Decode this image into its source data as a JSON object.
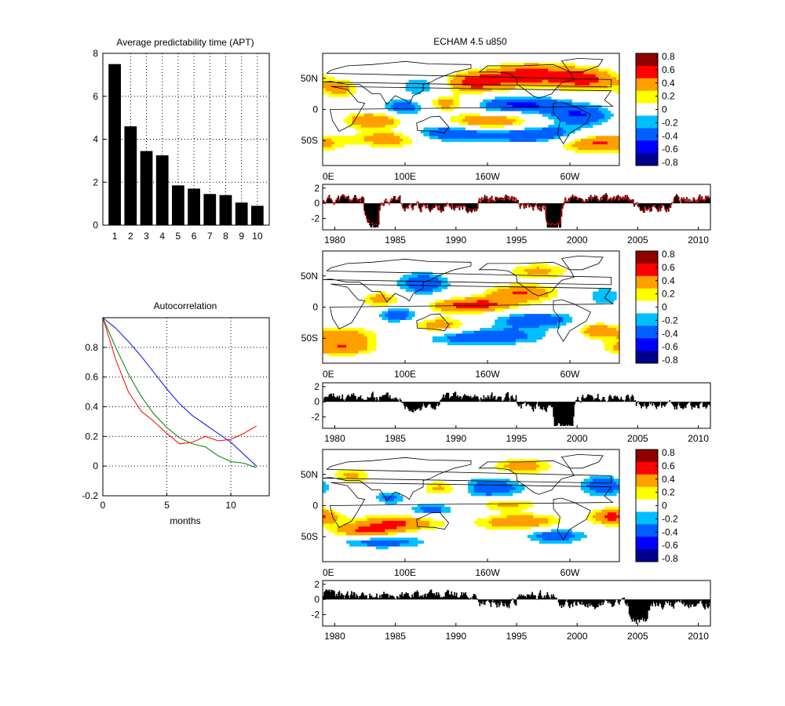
{
  "figure": {
    "title": "ECHAM 4.5 u850"
  },
  "chart_data": [
    {
      "id": "apt",
      "type": "bar",
      "title": "Average predictability time (APT)",
      "categories": [
        "1",
        "2",
        "3",
        "4",
        "5",
        "6",
        "7",
        "8",
        "9",
        "10"
      ],
      "values": [
        7.5,
        4.6,
        3.45,
        3.25,
        1.85,
        1.7,
        1.45,
        1.4,
        1.05,
        0.9
      ],
      "ylim": [
        0,
        8
      ],
      "yticks": [
        "0",
        "2",
        "4",
        "6",
        "8"
      ],
      "grid": true,
      "bar_color": "#000000"
    },
    {
      "id": "autocorr",
      "type": "line",
      "title": "Autocorrelation",
      "xlabel": "months",
      "xlim": [
        0,
        13
      ],
      "ylim": [
        -0.2,
        1.0
      ],
      "xticks": [
        "0",
        "5",
        "10"
      ],
      "yticks": [
        "-0.2",
        "0",
        "0.2",
        "0.4",
        "0.6",
        "0.8"
      ],
      "grid": true,
      "series": [
        {
          "color": "#0000ff",
          "x": [
            0,
            1,
            2,
            3,
            4,
            5,
            6,
            7,
            8,
            9,
            10,
            11,
            12
          ],
          "y": [
            1.0,
            0.93,
            0.84,
            0.74,
            0.63,
            0.52,
            0.42,
            0.34,
            0.28,
            0.22,
            0.16,
            0.08,
            0.0
          ]
        },
        {
          "color": "#008000",
          "x": [
            0,
            1,
            2,
            3,
            4,
            5,
            6,
            7,
            8,
            9,
            10,
            11,
            12
          ],
          "y": [
            1.0,
            0.8,
            0.62,
            0.47,
            0.35,
            0.26,
            0.19,
            0.15,
            0.13,
            0.07,
            0.03,
            0.02,
            -0.01
          ]
        },
        {
          "color": "#ff0000",
          "x": [
            0,
            1,
            2,
            3,
            4,
            5,
            6,
            7,
            8,
            9,
            10,
            11,
            12
          ],
          "y": [
            1.0,
            0.72,
            0.5,
            0.37,
            0.3,
            0.22,
            0.15,
            0.16,
            0.2,
            0.17,
            0.18,
            0.22,
            0.27
          ]
        }
      ]
    }
  ],
  "maps": {
    "lat_labels": [
      "50N",
      "0",
      "50S"
    ],
    "lon_labels": [
      "0E",
      "100E",
      "160W",
      "60W"
    ],
    "colorbar_ticks": [
      "0.8",
      "0.6",
      "0.4",
      "0.2",
      "0",
      "-0.2",
      "-0.4",
      "-0.6",
      "-0.8"
    ],
    "colors": [
      "#00008f",
      "#0000ff",
      "#0060ff",
      "#00bfff",
      "#ffffff",
      "#ffff00",
      "#ff9f00",
      "#ff0000",
      "#8f0000"
    ],
    "patterns": [
      [
        [
          -0.35,
          120,
          40,
          22,
          14
        ],
        [
          0.55,
          180,
          45,
          30,
          12
        ],
        [
          0.6,
          250,
          58,
          38,
          14
        ],
        [
          0.5,
          320,
          50,
          28,
          14
        ],
        [
          0.5,
          145,
          12,
          24,
          10
        ],
        [
          -0.5,
          100,
          5,
          22,
          10
        ],
        [
          -0.55,
          235,
          10,
          45,
          10
        ],
        [
          -0.5,
          310,
          -8,
          30,
          12
        ],
        [
          0.5,
          60,
          -15,
          28,
          10
        ],
        [
          0.55,
          200,
          -18,
          40,
          10
        ],
        [
          -0.5,
          150,
          -35,
          35,
          10
        ],
        [
          -0.55,
          260,
          -38,
          50,
          10
        ],
        [
          0.6,
          330,
          -50,
          35,
          12
        ],
        [
          0.45,
          80,
          -45,
          30,
          10
        ],
        [
          0.35,
          20,
          35,
          18,
          12
        ]
      ],
      [
        [
          0.6,
          180,
          5,
          40,
          9
        ],
        [
          -0.45,
          120,
          40,
          25,
          14
        ],
        [
          -0.5,
          90,
          -10,
          18,
          10
        ],
        [
          -0.45,
          255,
          -18,
          40,
          10
        ],
        [
          0.5,
          240,
          25,
          32,
          10
        ],
        [
          0.45,
          140,
          -28,
          30,
          10
        ],
        [
          -0.5,
          190,
          -45,
          55,
          10
        ],
        [
          0.4,
          30,
          -45,
          30,
          12
        ],
        [
          0.45,
          330,
          -35,
          18,
          10
        ],
        [
          0.4,
          70,
          15,
          18,
          10
        ],
        [
          -0.3,
          340,
          20,
          18,
          12
        ],
        [
          0.35,
          260,
          60,
          30,
          10
        ],
        [
          0.4,
          20,
          -65,
          30,
          8
        ]
      ],
      [
        [
          0.5,
          90,
          -25,
          40,
          10
        ],
        [
          0.5,
          50,
          -40,
          30,
          8
        ],
        [
          0.55,
          350,
          -15,
          20,
          10
        ],
        [
          -0.45,
          340,
          35,
          22,
          14
        ],
        [
          -0.45,
          200,
          30,
          35,
          14
        ],
        [
          0.45,
          145,
          30,
          20,
          10
        ],
        [
          0.5,
          240,
          -25,
          40,
          10
        ],
        [
          -0.4,
          130,
          -5,
          24,
          8
        ],
        [
          -0.45,
          70,
          -55,
          40,
          8
        ],
        [
          0.4,
          220,
          5,
          30,
          8
        ],
        [
          -0.45,
          280,
          -45,
          30,
          10
        ],
        [
          0.4,
          240,
          65,
          30,
          10
        ],
        [
          0.35,
          30,
          50,
          22,
          10
        ],
        [
          -0.35,
          80,
          15,
          15,
          8
        ]
      ]
    ],
    "panels": [
      {
        "pc_sign": [
          1,
          1,
          -1,
          -1,
          1,
          -1,
          1,
          1,
          -1,
          1
        ],
        "seed": 11,
        "show_red": true
      },
      {
        "pc_sign": [
          1,
          1,
          -1,
          1,
          1,
          -1,
          1,
          1,
          -1,
          -1
        ],
        "seed": 23,
        "show_red": false
      },
      {
        "pc_sign": [
          1,
          1,
          1,
          1,
          -1,
          1,
          -1,
          -1,
          -1,
          -1
        ],
        "seed": 37,
        "show_red": false
      }
    ]
  },
  "timeseries": {
    "year_ticks": [
      "1980",
      "1985",
      "1990",
      "1995",
      "2000",
      "2005",
      "2010"
    ],
    "y_ticks": [
      "2",
      "0",
      "-2"
    ],
    "ylim": [
      -3.5,
      2.5
    ],
    "start_year": 1979,
    "end_year": 2011,
    "bar_color": "#000000",
    "line_color": "#ff0000"
  }
}
